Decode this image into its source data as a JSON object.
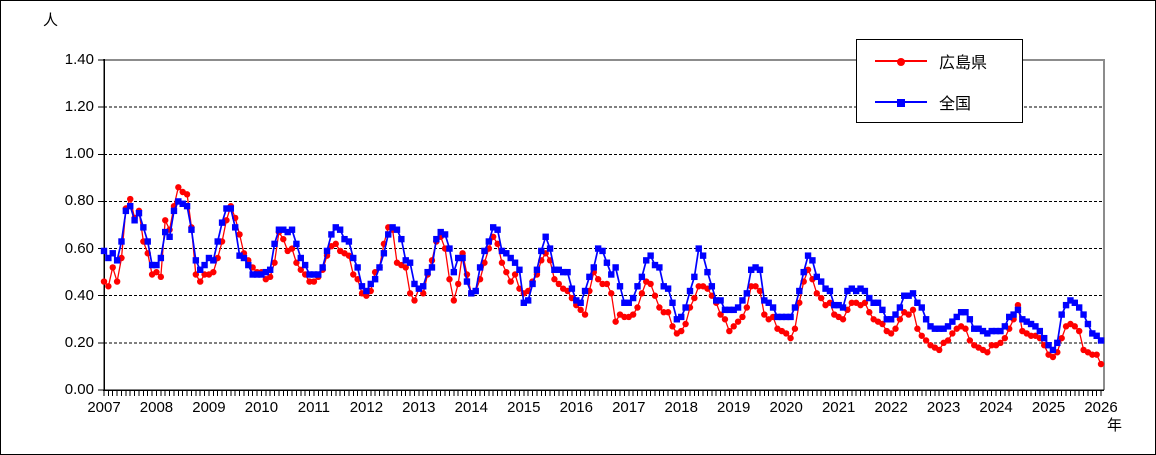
{
  "page": {
    "background": "#ffffff",
    "frame_border_color": "#000000"
  },
  "chart": {
    "y_axis_title": "人",
    "x_axis_title": "年",
    "y_tick_labels": [
      "1.40",
      "1.20",
      "1.00",
      "0.80",
      "0.60",
      "0.40",
      "0.20",
      "0.00"
    ],
    "x_year_labels": [
      "2007",
      "2008",
      "2009",
      "2010",
      "2011",
      "2012",
      "2013",
      "2014",
      "2015",
      "2016",
      "2017",
      "2018",
      "2019",
      "2020",
      "2021",
      "2022",
      "2023",
      "2024",
      "2025",
      "2026"
    ],
    "plot_border_gray": "#8c8c8c",
    "axis_color": "#000000",
    "gridline_color": "#000000",
    "legend": [
      {
        "label": "広島県",
        "color": "#ff0000",
        "marker": "circle"
      },
      {
        "label": "全国",
        "color": "#0000ff",
        "marker": "square"
      }
    ]
  },
  "chart_data": {
    "type": "line",
    "title": "",
    "ylabel": "人",
    "xlabel": "年",
    "ylim": [
      0.0,
      1.4
    ],
    "y_tick_step": 0.2,
    "grid": "horizontal-dashed",
    "legend_position": "top-right-inside",
    "x_start": "2007-01",
    "x_end": "2026-01",
    "x_frequency": "monthly",
    "x_year_ticks": [
      2007,
      2008,
      2009,
      2010,
      2011,
      2012,
      2013,
      2014,
      2015,
      2016,
      2017,
      2018,
      2019,
      2020,
      2021,
      2022,
      2023,
      2024,
      2025,
      2026
    ],
    "series": [
      {
        "name": "広島県",
        "color": "#ff0000",
        "marker": "circle",
        "values": [
          0.46,
          0.44,
          0.52,
          0.46,
          0.56,
          0.77,
          0.81,
          0.73,
          0.76,
          0.63,
          0.58,
          0.49,
          0.5,
          0.48,
          0.72,
          0.68,
          0.78,
          0.86,
          0.84,
          0.83,
          0.69,
          0.49,
          0.46,
          0.49,
          0.49,
          0.5,
          0.56,
          0.63,
          0.72,
          0.78,
          0.73,
          0.66,
          0.58,
          0.55,
          0.52,
          0.5,
          0.5,
          0.47,
          0.48,
          0.54,
          0.67,
          0.64,
          0.59,
          0.6,
          0.54,
          0.51,
          0.49,
          0.46,
          0.46,
          0.48,
          0.51,
          0.57,
          0.61,
          0.62,
          0.59,
          0.58,
          0.57,
          0.49,
          0.47,
          0.41,
          0.4,
          0.42,
          0.5,
          0.52,
          0.62,
          0.69,
          0.68,
          0.54,
          0.53,
          0.52,
          0.41,
          0.38,
          0.43,
          0.41,
          0.49,
          0.55,
          0.63,
          0.65,
          0.6,
          0.47,
          0.38,
          0.45,
          0.58,
          0.49,
          0.41,
          0.42,
          0.47,
          0.54,
          0.6,
          0.65,
          0.62,
          0.54,
          0.5,
          0.46,
          0.49,
          0.43,
          0.41,
          0.42,
          0.46,
          0.49,
          0.55,
          0.58,
          0.55,
          0.47,
          0.45,
          0.43,
          0.42,
          0.39,
          0.36,
          0.34,
          0.32,
          0.42,
          0.5,
          0.47,
          0.45,
          0.45,
          0.41,
          0.29,
          0.32,
          0.31,
          0.31,
          0.32,
          0.35,
          0.41,
          0.46,
          0.45,
          0.4,
          0.35,
          0.33,
          0.33,
          0.27,
          0.24,
          0.25,
          0.28,
          0.35,
          0.39,
          0.44,
          0.44,
          0.43,
          0.4,
          0.37,
          0.32,
          0.3,
          0.25,
          0.27,
          0.29,
          0.31,
          0.35,
          0.44,
          0.44,
          0.42,
          0.32,
          0.3,
          0.31,
          0.26,
          0.25,
          0.24,
          0.22,
          0.26,
          0.37,
          0.46,
          0.51,
          0.47,
          0.41,
          0.39,
          0.36,
          0.37,
          0.32,
          0.31,
          0.3,
          0.34,
          0.37,
          0.37,
          0.36,
          0.37,
          0.33,
          0.3,
          0.29,
          0.28,
          0.25,
          0.24,
          0.26,
          0.3,
          0.33,
          0.32,
          0.34,
          0.26,
          0.23,
          0.21,
          0.19,
          0.18,
          0.17,
          0.2,
          0.21,
          0.24,
          0.26,
          0.27,
          0.26,
          0.21,
          0.19,
          0.18,
          0.17,
          0.16,
          0.19,
          0.19,
          0.2,
          0.22,
          0.26,
          0.3,
          0.36,
          0.25,
          0.24,
          0.23,
          0.23,
          0.22,
          0.19,
          0.15,
          0.14,
          0.16,
          0.22,
          0.27,
          0.28,
          0.27,
          0.25,
          0.17,
          0.16,
          0.15,
          0.15,
          0.11
        ]
      },
      {
        "name": "全国",
        "color": "#0000ff",
        "marker": "square",
        "values": [
          0.59,
          0.56,
          0.58,
          0.55,
          0.63,
          0.76,
          0.78,
          0.72,
          0.75,
          0.69,
          0.63,
          0.53,
          0.53,
          0.56,
          0.67,
          0.65,
          0.76,
          0.8,
          0.79,
          0.78,
          0.68,
          0.55,
          0.51,
          0.53,
          0.56,
          0.55,
          0.63,
          0.71,
          0.77,
          0.77,
          0.69,
          0.57,
          0.56,
          0.53,
          0.49,
          0.49,
          0.49,
          0.5,
          0.51,
          0.62,
          0.68,
          0.68,
          0.67,
          0.68,
          0.62,
          0.56,
          0.53,
          0.49,
          0.49,
          0.49,
          0.52,
          0.59,
          0.66,
          0.69,
          0.68,
          0.64,
          0.63,
          0.56,
          0.52,
          0.44,
          0.42,
          0.45,
          0.47,
          0.52,
          0.58,
          0.66,
          0.69,
          0.68,
          0.64,
          0.55,
          0.54,
          0.45,
          0.43,
          0.44,
          0.5,
          0.52,
          0.64,
          0.67,
          0.66,
          0.6,
          0.5,
          0.56,
          0.56,
          0.46,
          0.41,
          0.42,
          0.52,
          0.59,
          0.63,
          0.69,
          0.68,
          0.59,
          0.58,
          0.56,
          0.54,
          0.51,
          0.37,
          0.38,
          0.45,
          0.51,
          0.59,
          0.65,
          0.6,
          0.51,
          0.51,
          0.5,
          0.5,
          0.43,
          0.38,
          0.37,
          0.42,
          0.48,
          0.52,
          0.6,
          0.59,
          0.54,
          0.49,
          0.52,
          0.44,
          0.37,
          0.37,
          0.39,
          0.44,
          0.48,
          0.55,
          0.57,
          0.53,
          0.52,
          0.44,
          0.43,
          0.37,
          0.3,
          0.31,
          0.35,
          0.42,
          0.48,
          0.6,
          0.57,
          0.5,
          0.44,
          0.38,
          0.38,
          0.34,
          0.34,
          0.34,
          0.35,
          0.38,
          0.41,
          0.51,
          0.52,
          0.51,
          0.38,
          0.37,
          0.35,
          0.31,
          0.31,
          0.31,
          0.31,
          0.35,
          0.42,
          0.5,
          0.57,
          0.55,
          0.48,
          0.46,
          0.43,
          0.42,
          0.36,
          0.36,
          0.35,
          0.42,
          0.43,
          0.42,
          0.43,
          0.42,
          0.39,
          0.37,
          0.37,
          0.34,
          0.3,
          0.3,
          0.32,
          0.35,
          0.4,
          0.4,
          0.41,
          0.37,
          0.35,
          0.3,
          0.27,
          0.26,
          0.26,
          0.26,
          0.27,
          0.29,
          0.31,
          0.33,
          0.33,
          0.3,
          0.26,
          0.26,
          0.25,
          0.24,
          0.25,
          0.25,
          0.25,
          0.27,
          0.31,
          0.32,
          0.34,
          0.3,
          0.29,
          0.28,
          0.27,
          0.25,
          0.22,
          0.19,
          0.17,
          0.2,
          0.32,
          0.36,
          0.38,
          0.37,
          0.35,
          0.32,
          0.28,
          0.24,
          0.23,
          0.21
        ]
      }
    ]
  }
}
